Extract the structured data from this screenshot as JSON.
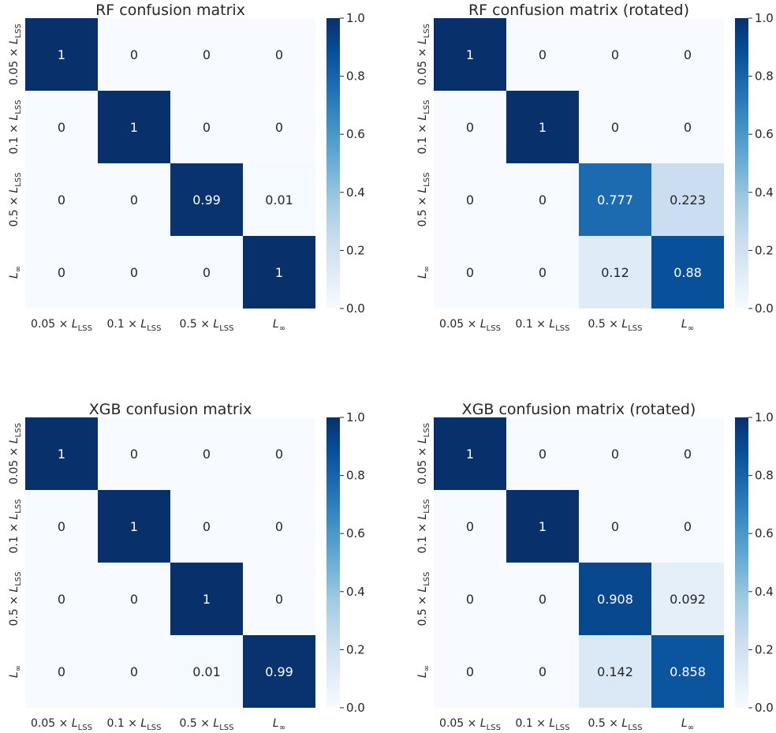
{
  "figure_title": "",
  "colormap": {
    "name": "Blues",
    "stops": [
      "#f7fbff",
      "#deebf7",
      "#c6dbef",
      "#9ecae1",
      "#6baed6",
      "#4292c6",
      "#2171b5",
      "#08519c",
      "#08306b"
    ],
    "text_light": "#ffffff",
    "text_dark": "#262626"
  },
  "chart_data": [
    {
      "type": "heatmap",
      "title": "RF confusion matrix",
      "xlabel": "",
      "ylabel": "",
      "categories": [
        "0.05 × L_LSS",
        "0.1 × L_LSS",
        "0.5 × L_LSS",
        "L_∞"
      ],
      "values": [
        [
          1,
          0,
          0,
          0
        ],
        [
          0,
          1,
          0,
          0
        ],
        [
          0,
          0,
          0.99,
          0.01
        ],
        [
          0,
          0,
          0,
          1
        ]
      ],
      "labels": [
        [
          "1",
          "0",
          "0",
          "0"
        ],
        [
          "0",
          "1",
          "0",
          "0"
        ],
        [
          "0",
          "0",
          "0.99",
          "0.01"
        ],
        [
          "0",
          "0",
          "0",
          "1"
        ]
      ],
      "colorbar": {
        "range": [
          0,
          1
        ],
        "ticks": [
          "0.0",
          "0.2",
          "0.4",
          "0.6",
          "0.8",
          "1.0"
        ]
      }
    },
    {
      "type": "heatmap",
      "title": "RF confusion matrix (rotated)",
      "xlabel": "",
      "ylabel": "",
      "categories": [
        "0.05 × L_LSS",
        "0.1 × L_LSS",
        "0.5 × L_LSS",
        "L_∞"
      ],
      "values": [
        [
          1,
          0,
          0,
          0
        ],
        [
          0,
          1,
          0,
          0
        ],
        [
          0,
          0,
          0.777,
          0.223
        ],
        [
          0,
          0,
          0.12,
          0.88
        ]
      ],
      "labels": [
        [
          "1",
          "0",
          "0",
          "0"
        ],
        [
          "0",
          "1",
          "0",
          "0"
        ],
        [
          "0",
          "0",
          "0.777",
          "0.223"
        ],
        [
          "0",
          "0",
          "0.12",
          "0.88"
        ]
      ],
      "colorbar": {
        "range": [
          0,
          1
        ],
        "ticks": [
          "0.0",
          "0.2",
          "0.4",
          "0.6",
          "0.8",
          "1.0"
        ]
      }
    },
    {
      "type": "heatmap",
      "title": "XGB confusion matrix",
      "xlabel": "",
      "ylabel": "",
      "categories": [
        "0.05 × L_LSS",
        "0.1 × L_LSS",
        "0.5 × L_LSS",
        "L_∞"
      ],
      "values": [
        [
          1,
          0,
          0,
          0
        ],
        [
          0,
          1,
          0,
          0
        ],
        [
          0,
          0,
          1,
          0
        ],
        [
          0,
          0,
          0.01,
          0.99
        ]
      ],
      "labels": [
        [
          "1",
          "0",
          "0",
          "0"
        ],
        [
          "0",
          "1",
          "0",
          "0"
        ],
        [
          "0",
          "0",
          "1",
          "0"
        ],
        [
          "0",
          "0",
          "0.01",
          "0.99"
        ]
      ],
      "colorbar": {
        "range": [
          0,
          1
        ],
        "ticks": [
          "0.0",
          "0.2",
          "0.4",
          "0.6",
          "0.8",
          "1.0"
        ]
      }
    },
    {
      "type": "heatmap",
      "title": "XGB confusion matrix (rotated)",
      "xlabel": "",
      "ylabel": "",
      "categories": [
        "0.05 × L_LSS",
        "0.1 × L_LSS",
        "0.5 × L_LSS",
        "L_∞"
      ],
      "values": [
        [
          1,
          0,
          0,
          0
        ],
        [
          0,
          1,
          0,
          0
        ],
        [
          0,
          0,
          0.908,
          0.092
        ],
        [
          0,
          0,
          0.142,
          0.858
        ]
      ],
      "labels": [
        [
          "1",
          "0",
          "0",
          "0"
        ],
        [
          "0",
          "1",
          "0",
          "0"
        ],
        [
          "0",
          "0",
          "0.908",
          "0.092"
        ],
        [
          "0",
          "0",
          "0.142",
          "0.858"
        ]
      ],
      "colorbar": {
        "range": [
          0,
          1
        ],
        "ticks": [
          "0.0",
          "0.2",
          "0.4",
          "0.6",
          "0.8",
          "1.0"
        ]
      }
    }
  ]
}
